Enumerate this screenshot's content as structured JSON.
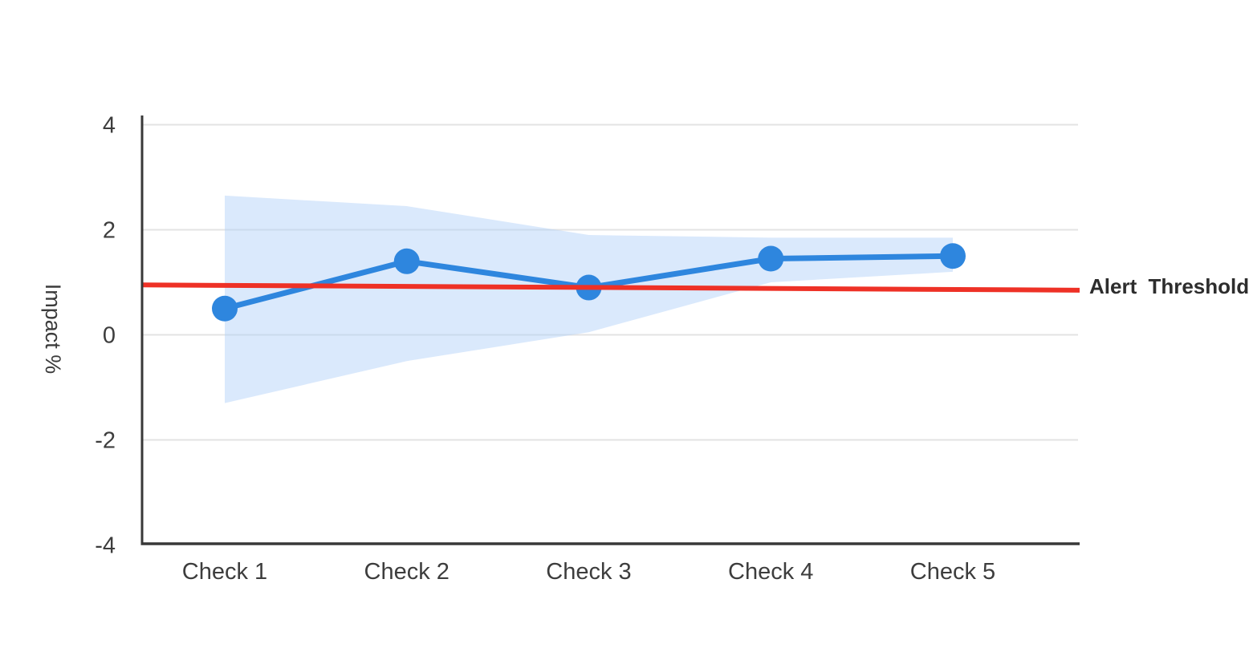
{
  "chart_data": {
    "type": "line",
    "title": "",
    "categories": [
      "Check 1",
      "Check 2",
      "Check 3",
      "Check 4",
      "Check 5"
    ],
    "series": [
      {
        "name": "Impact",
        "values": [
          0.5,
          1.4,
          0.9,
          1.45,
          1.5
        ]
      }
    ],
    "confidence_band": {
      "upper": [
        2.65,
        2.45,
        1.9,
        1.85,
        1.85
      ],
      "lower": [
        -1.3,
        -0.5,
        0.05,
        1.0,
        1.2
      ]
    },
    "threshold": {
      "label": "Alert Threshold",
      "start_value": 0.95,
      "end_value": 0.85
    },
    "ylabel": "Impact %",
    "xlabel": "",
    "ylim": [
      -4,
      4
    ],
    "yticks": [
      4,
      2,
      0,
      -2,
      -4
    ],
    "grid": true,
    "legend_position": "none",
    "colors": {
      "line": "#2e86de",
      "point": "#2e86de",
      "band": "#aecef8",
      "threshold": "#ee3126",
      "axis": "#383838",
      "grid": "#e3e3e3",
      "text": "#3d3d3d"
    }
  }
}
